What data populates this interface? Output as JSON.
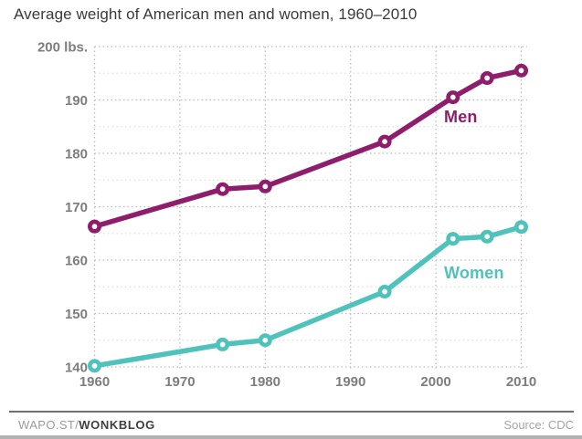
{
  "header": {
    "title": "Average weight of American men and women, 1960–2010"
  },
  "chart_data": {
    "type": "line",
    "x": [
      1960,
      1975,
      1980,
      1994,
      2002,
      2006,
      2010
    ],
    "series": [
      {
        "name": "Men",
        "color": "#8e1d6c",
        "values": [
          166.3,
          173.3,
          173.8,
          182.2,
          190.5,
          194.1,
          195.5
        ]
      },
      {
        "name": "Women",
        "color": "#4fc2bb",
        "values": [
          140.2,
          144.2,
          145.0,
          154.1,
          164.0,
          164.4,
          166.2
        ]
      }
    ],
    "xlim": [
      1960,
      2010
    ],
    "ylim": [
      140,
      200
    ],
    "yticks": [
      {
        "value": 200,
        "label": "200 lbs."
      },
      {
        "value": 190,
        "label": "190"
      },
      {
        "value": 180,
        "label": "180"
      },
      {
        "value": 170,
        "label": "170"
      },
      {
        "value": 160,
        "label": "160"
      },
      {
        "value": 150,
        "label": "150"
      },
      {
        "value": 140,
        "label": "140"
      }
    ],
    "xticks": [
      {
        "value": 1960,
        "label": "1960"
      },
      {
        "value": 1970,
        "label": "1970"
      },
      {
        "value": 1980,
        "label": "1980"
      },
      {
        "value": 1990,
        "label": "1990"
      },
      {
        "value": 2000,
        "label": "2000"
      },
      {
        "value": 2010,
        "label": "2010"
      }
    ],
    "grid": {
      "style": "dotted",
      "major_color": "#bdbdbd",
      "minor_color": "#dcdcdc",
      "minor_step": 5
    },
    "tick_color": "#7d7d7d",
    "legend": "inline-series-labels"
  },
  "footer": {
    "brand_prefix": "WAPO.ST/",
    "brand_bold": "WONKBLOG",
    "source": "Source: CDC"
  }
}
